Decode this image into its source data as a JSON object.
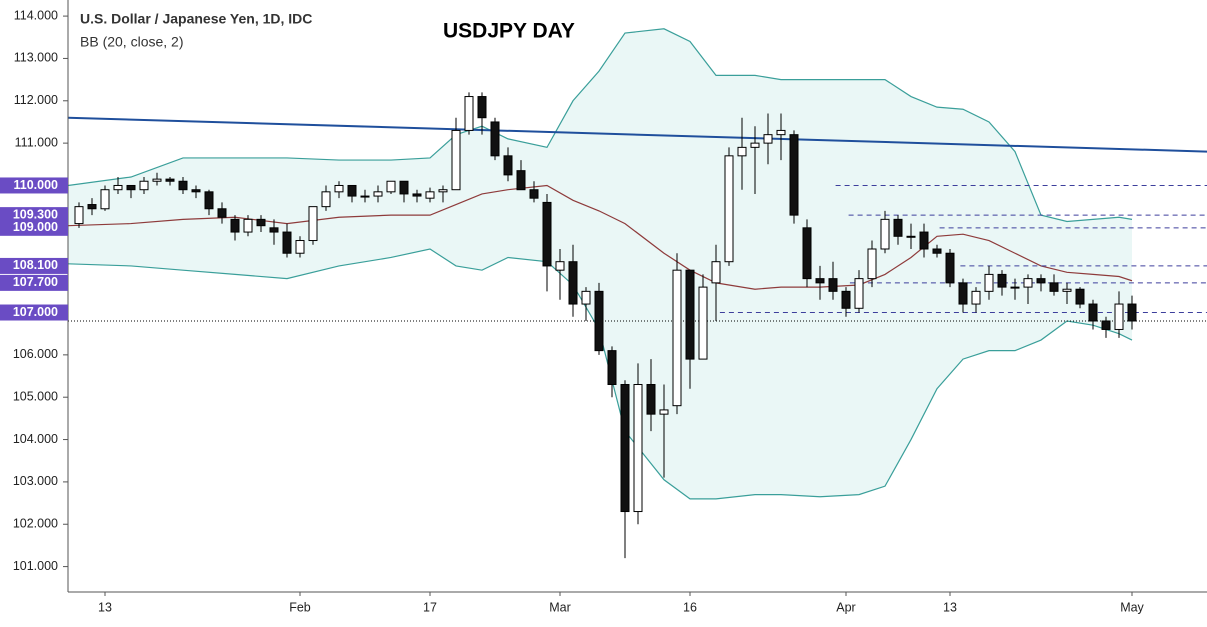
{
  "chart_data": {
    "type": "candlestick",
    "title": "U.S. Dollar / Japanese Yen, 1D, IDC",
    "subtitle": "BB (20, close, 2)",
    "annotation": "USDJPY DAY",
    "categories": [
      null,
      null,
      "13",
      null,
      null,
      null,
      null,
      null,
      null,
      null,
      null,
      null,
      null,
      null,
      null,
      null,
      null,
      "Feb",
      null,
      null,
      null,
      null,
      null,
      null,
      null,
      null,
      null,
      "17",
      null,
      null,
      null,
      null,
      null,
      null,
      null,
      null,
      null,
      "Mar",
      null,
      null,
      null,
      null,
      null,
      null,
      null,
      null,
      null,
      "16",
      null,
      null,
      null,
      null,
      null,
      null,
      null,
      null,
      null,
      null,
      null,
      "Apr",
      null,
      null,
      null,
      null,
      null,
      null,
      null,
      "13",
      null,
      null,
      null,
      null,
      null,
      null,
      null,
      null,
      null,
      null,
      null,
      null,
      null,
      "May"
    ],
    "open": [
      109.1,
      109.55,
      109.45,
      109.9,
      110.0,
      109.9,
      110.1,
      110.15,
      110.1,
      109.9,
      109.85,
      109.45,
      109.2,
      108.9,
      109.2,
      109.0,
      108.9,
      108.4,
      108.7,
      109.5,
      109.85,
      110.0,
      109.75,
      109.75,
      109.85,
      110.1,
      109.8,
      109.7,
      109.85,
      109.9,
      111.3,
      112.1,
      111.5,
      110.7,
      110.35,
      109.9,
      109.6,
      108.0,
      108.2,
      107.2,
      107.5,
      106.1,
      105.3,
      102.3,
      105.3,
      104.6,
      104.8,
      108.0,
      105.9,
      107.7,
      108.2,
      110.7,
      110.9,
      111.0,
      111.2,
      111.2,
      109.0,
      107.8,
      107.8,
      107.5,
      107.1,
      107.8,
      108.5,
      109.2,
      108.8,
      108.9,
      108.5,
      108.4,
      107.7,
      107.2,
      107.5,
      107.9,
      107.6,
      107.6,
      107.8,
      107.7,
      107.5,
      107.55,
      107.2,
      106.8,
      106.6,
      107.2
    ],
    "high": [
      109.6,
      109.7,
      110.0,
      110.2,
      110.0,
      110.2,
      110.3,
      110.2,
      110.2,
      110.0,
      109.9,
      109.6,
      109.3,
      109.3,
      109.3,
      109.2,
      109.1,
      108.8,
      109.5,
      110.0,
      110.1,
      110.0,
      109.9,
      110.0,
      110.1,
      110.1,
      109.9,
      109.95,
      110.0,
      111.6,
      112.2,
      112.2,
      111.6,
      110.9,
      110.6,
      110.1,
      109.8,
      108.5,
      108.6,
      107.6,
      107.7,
      106.2,
      105.4,
      105.8,
      105.9,
      105.3,
      108.4,
      108.0,
      107.9,
      108.6,
      110.9,
      111.6,
      111.4,
      111.7,
      111.7,
      111.3,
      109.2,
      108.1,
      108.2,
      107.6,
      108.0,
      108.7,
      109.4,
      109.3,
      109.1,
      109.1,
      108.6,
      108.5,
      107.8,
      107.6,
      108.1,
      108.0,
      107.8,
      107.9,
      107.9,
      107.9,
      107.7,
      107.6,
      107.3,
      106.9,
      107.5,
      107.4
    ],
    "low": [
      109.0,
      109.3,
      109.4,
      109.8,
      109.7,
      109.8,
      110.0,
      110.0,
      109.8,
      109.7,
      109.3,
      109.1,
      108.7,
      108.8,
      108.9,
      108.6,
      108.3,
      108.3,
      108.6,
      109.4,
      109.7,
      109.6,
      109.6,
      109.6,
      109.8,
      109.6,
      109.6,
      109.6,
      109.6,
      109.9,
      111.2,
      111.2,
      110.6,
      110.1,
      109.9,
      109.6,
      107.5,
      107.3,
      106.9,
      106.8,
      106.0,
      105.0,
      101.2,
      102.0,
      104.2,
      103.1,
      104.6,
      105.2,
      105.9,
      106.8,
      108.1,
      109.9,
      109.8,
      110.5,
      110.6,
      109.1,
      107.6,
      107.3,
      107.3,
      106.9,
      107.0,
      107.6,
      108.4,
      108.6,
      108.5,
      108.3,
      108.3,
      107.6,
      107.0,
      107.0,
      107.3,
      107.4,
      107.3,
      107.2,
      107.5,
      107.4,
      107.2,
      107.1,
      106.6,
      106.4,
      106.4,
      106.6
    ],
    "close": [
      109.5,
      109.45,
      109.9,
      110.0,
      109.9,
      110.1,
      110.15,
      110.1,
      109.9,
      109.85,
      109.45,
      109.25,
      108.9,
      109.2,
      109.05,
      108.9,
      108.4,
      108.7,
      109.5,
      109.85,
      110.0,
      109.75,
      109.75,
      109.85,
      110.1,
      109.8,
      109.75,
      109.85,
      109.9,
      111.3,
      112.1,
      111.6,
      110.7,
      110.25,
      109.9,
      109.7,
      108.1,
      108.2,
      107.2,
      107.5,
      106.1,
      105.3,
      102.3,
      105.3,
      104.6,
      104.7,
      108.0,
      105.9,
      107.6,
      108.2,
      110.7,
      110.9,
      111.0,
      111.2,
      111.3,
      109.3,
      107.8,
      107.7,
      107.5,
      107.1,
      107.8,
      108.5,
      109.2,
      108.8,
      108.8,
      108.5,
      108.4,
      107.7,
      107.2,
      107.5,
      107.9,
      107.6,
      107.6,
      107.8,
      107.7,
      107.5,
      107.55,
      107.2,
      106.8,
      106.6,
      107.2,
      106.8
    ],
    "bands": {
      "x": [
        -0.85,
        4,
        8,
        12,
        16,
        20,
        24,
        27,
        29,
        31,
        33,
        36,
        38,
        40,
        42,
        45,
        47,
        49,
        52,
        54,
        57,
        60,
        62,
        64,
        66,
        68,
        70,
        72,
        74,
        76,
        78,
        80,
        81
      ],
      "upper": [
        110.0,
        110.2,
        110.65,
        110.65,
        110.65,
        110.6,
        110.6,
        110.65,
        111.2,
        111.4,
        111.1,
        110.9,
        112.0,
        112.7,
        113.6,
        113.7,
        113.4,
        112.6,
        112.6,
        112.5,
        112.5,
        112.5,
        112.5,
        112.1,
        111.85,
        111.8,
        111.5,
        110.8,
        109.3,
        109.15,
        109.2,
        109.25,
        109.2
      ],
      "middle": [
        109.05,
        109.1,
        109.2,
        109.25,
        109.1,
        109.25,
        109.3,
        109.3,
        109.55,
        109.8,
        109.9,
        110.0,
        109.65,
        109.4,
        109.1,
        108.4,
        108.0,
        107.7,
        107.55,
        107.6,
        107.6,
        107.65,
        107.9,
        108.3,
        108.8,
        108.85,
        108.7,
        108.4,
        108.1,
        107.95,
        107.9,
        107.85,
        107.75
      ],
      "lower": [
        108.15,
        108.1,
        108.0,
        107.9,
        107.8,
        108.1,
        108.3,
        108.5,
        108.1,
        108.0,
        108.3,
        108.2,
        107.65,
        106.6,
        104.2,
        103.05,
        102.6,
        102.6,
        102.7,
        102.7,
        102.65,
        102.7,
        102.9,
        104.0,
        105.2,
        105.9,
        106.1,
        106.1,
        106.35,
        106.8,
        106.7,
        106.5,
        106.35
      ],
      "upper_color": "#3a9f9a",
      "middle_color": "#8e3b3b",
      "lower_color": "#3a9f9a",
      "fill": "#eaf7f6"
    },
    "trendline": {
      "x": [
        -0.85,
        86.8
      ],
      "y": [
        111.6,
        110.8
      ],
      "color": "#1f4f9c"
    },
    "levels": [
      {
        "value": 110.0,
        "label": "110.000",
        "from": 58.2
      },
      {
        "value": 109.3,
        "label": "109.300",
        "from": 59.2
      },
      {
        "value": 109.0,
        "label": "109.000",
        "from": 66.2
      },
      {
        "value": 108.1,
        "label": "108.100",
        "from": 67.8
      },
      {
        "value": 107.7,
        "label": "107.700",
        "from": 59.3
      },
      {
        "value": 107.0,
        "label": "107.000",
        "from": 49.3
      }
    ],
    "level_color": "#3d3f9c",
    "level_label_color": "#6a4cc4",
    "price_line": 106.8,
    "ylim": [
      100.4,
      114.38
    ],
    "yticks": [
      {
        "value": 114,
        "label": "114.000"
      },
      {
        "value": 113,
        "label": "113.000"
      },
      {
        "value": 112,
        "label": "112.000"
      },
      {
        "value": 111,
        "label": "111.000"
      },
      {
        "value": 106,
        "label": "106.000"
      },
      {
        "value": 105,
        "label": "105.000"
      },
      {
        "value": 104,
        "label": "104.000"
      },
      {
        "value": 103,
        "label": "103.000"
      },
      {
        "value": 102,
        "label": "102.000"
      },
      {
        "value": 101,
        "label": "101.000"
      }
    ],
    "up_color": "#ffffff",
    "down_color": "#111111"
  }
}
